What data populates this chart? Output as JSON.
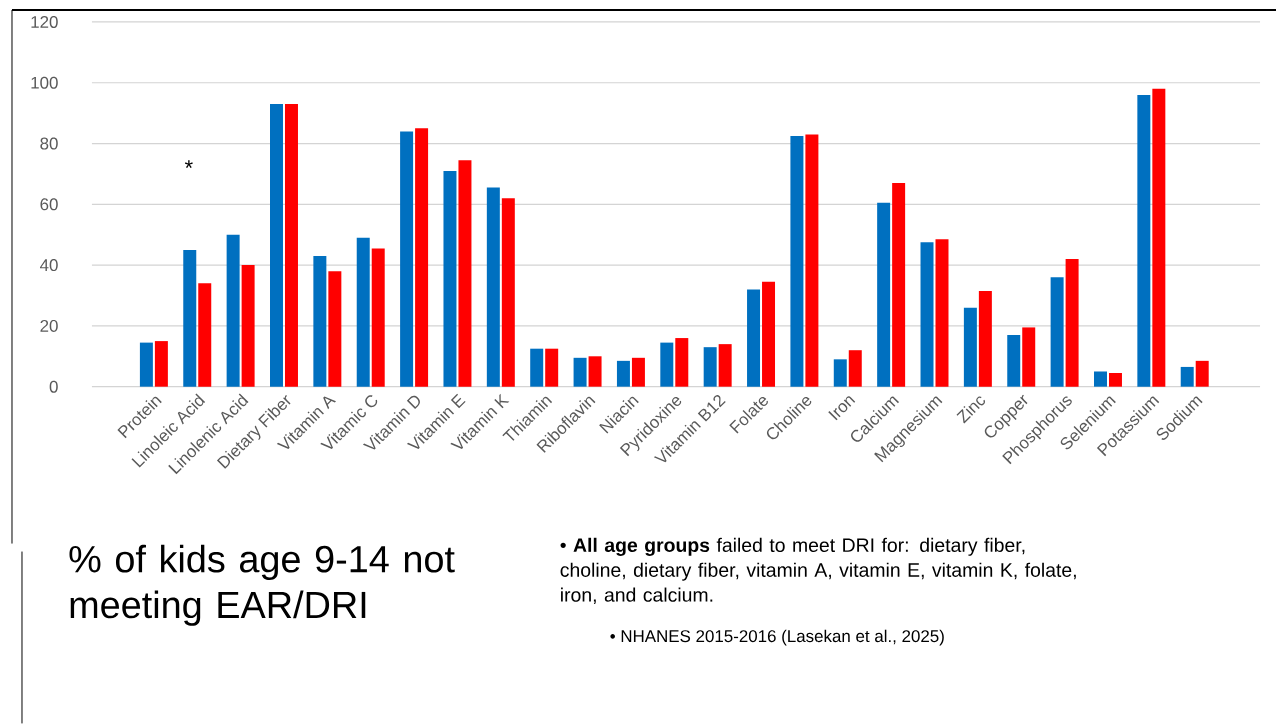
{
  "chart_data": {
    "type": "bar",
    "title": "% of kids age 9-14 not meeting EAR/DRI",
    "categories": [
      "Protein",
      "Linoleic Acid",
      "Linolenic Acid",
      "Dietary Fiber",
      "Vitamin A",
      "Vitamic C",
      "Vitamin D",
      "Vitamin E",
      "Vitamin K",
      "Thiamin",
      "Riboflavin",
      "Niacin",
      "Pyridoxine",
      "Vitamin B12",
      "Folate",
      "Choline",
      "Iron",
      "Calcium",
      "Magnesium",
      "Zinc",
      "Copper",
      "Phosphorus",
      "Selenium",
      "Potassium",
      "Sodium"
    ],
    "series": [
      {
        "color": "#0070c0",
        "values": [
          14.5,
          45,
          50,
          93,
          43,
          49,
          84,
          71,
          65.5,
          12.5,
          9.5,
          8.5,
          14.5,
          13,
          32,
          82.5,
          9,
          60.5,
          47.5,
          26,
          17,
          36,
          5,
          96,
          6.5
        ]
      },
      {
        "color": "#ff0000",
        "values": [
          15,
          34,
          40,
          93,
          38,
          45.5,
          85,
          74.5,
          62,
          12.5,
          10,
          9.5,
          16,
          14,
          34.5,
          83,
          12,
          67,
          48.5,
          31.5,
          19.5,
          42,
          4.5,
          98,
          8.5
        ]
      }
    ],
    "ylim": [
      0,
      120
    ],
    "yticks": [
      0,
      20,
      40,
      60,
      80,
      100,
      120
    ],
    "grid": "y",
    "annotations": [
      "*",
      "•  **All age groups** failed to meet DRI for:  dietary fiber, choline, dietary fiber, vitamin A, vitamin E, vitamin K, folate, iron, and calcium.",
      "•  NHANES 2015-2016 (Lasekan et al., 2025)"
    ]
  }
}
